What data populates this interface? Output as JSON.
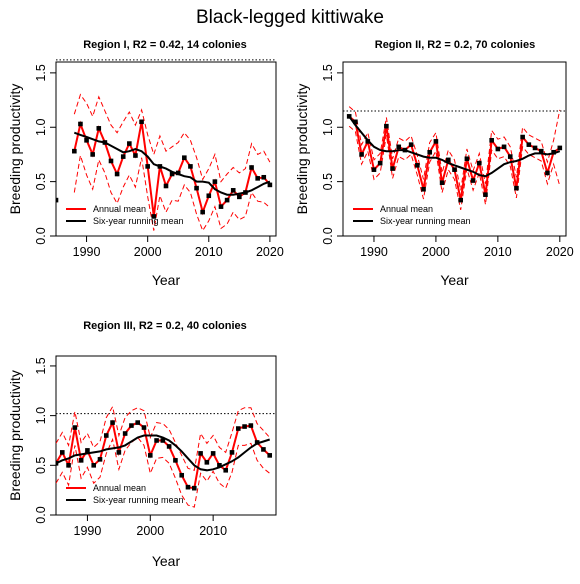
{
  "figure_title": "Black-legged kittiwake",
  "colors": {
    "annual": "#ff0000",
    "running": "#000000",
    "reference": "#000000",
    "points": "#000000"
  },
  "chart_data": [
    {
      "type": "line",
      "title": "Region I, R2 = 0.42, 14 colonies",
      "xlabel": "Year",
      "ylabel": "Breeding productivity",
      "xlim": [
        1985,
        2021
      ],
      "ylim": [
        0,
        1.6
      ],
      "xticks": [
        1990,
        2000,
        2010,
        2020
      ],
      "yticks": [
        0.0,
        0.5,
        1.0,
        1.5
      ],
      "reference_line": 1.62,
      "legend": {
        "position": "bottom-left",
        "entries": [
          "Annual mean",
          "Six-year running mean"
        ]
      },
      "x": [
        1985,
        1988,
        1989,
        1990,
        1991,
        1992,
        1993,
        1994,
        1995,
        1996,
        1997,
        1998,
        1999,
        2000,
        2001,
        2002,
        2003,
        2004,
        2005,
        2006,
        2007,
        2008,
        2009,
        2010,
        2011,
        2012,
        2013,
        2014,
        2015,
        2016,
        2017,
        2018,
        2019,
        2020
      ],
      "series": [
        {
          "name": "Annual mean",
          "values": [
            0.33,
            0.78,
            1.03,
            0.88,
            0.75,
            0.99,
            0.86,
            0.69,
            0.57,
            0.73,
            0.85,
            0.74,
            1.05,
            0.64,
            0.18,
            0.64,
            0.46,
            0.57,
            0.58,
            0.72,
            0.64,
            0.44,
            0.22,
            0.37,
            0.5,
            0.27,
            0.33,
            0.42,
            0.36,
            0.4,
            0.63,
            0.53,
            0.54,
            0.47
          ]
        },
        {
          "name": "Six-year running mean",
          "values": [
            null,
            0.95,
            0.93,
            0.91,
            0.89,
            0.87,
            0.86,
            0.83,
            0.8,
            0.77,
            0.78,
            0.8,
            0.78,
            0.73,
            0.66,
            0.64,
            0.62,
            0.59,
            0.57,
            0.55,
            0.54,
            0.5,
            0.5,
            0.49,
            0.43,
            0.4,
            0.38,
            0.38,
            0.39,
            0.4,
            0.42,
            0.45,
            0.48,
            0.5
          ]
        },
        {
          "name": "Upper bound",
          "values": [
            null,
            1.12,
            1.3,
            1.22,
            1.1,
            1.28,
            1.15,
            1.02,
            0.95,
            1.05,
            1.14,
            1.02,
            1.16,
            0.93,
            0.75,
            0.92,
            0.78,
            0.82,
            0.86,
            0.95,
            0.88,
            0.72,
            0.52,
            0.62,
            0.75,
            0.5,
            0.57,
            0.63,
            0.58,
            0.62,
            0.85,
            0.75,
            0.78,
            0.68
          ]
        },
        {
          "name": "Lower bound",
          "values": [
            null,
            0.4,
            0.74,
            0.56,
            0.43,
            0.7,
            0.58,
            0.4,
            0.3,
            0.45,
            0.56,
            0.45,
            0.72,
            0.36,
            0.05,
            0.37,
            0.22,
            0.33,
            0.32,
            0.47,
            0.4,
            0.2,
            0.05,
            0.14,
            0.27,
            0.07,
            0.11,
            0.22,
            0.15,
            0.18,
            0.4,
            0.32,
            0.31,
            0.26
          ]
        }
      ]
    },
    {
      "type": "line",
      "title": "Region II, R2 = 0.2, 70 colonies",
      "xlabel": "Year",
      "ylabel": "Breeding productivity",
      "xlim": [
        1985,
        2021
      ],
      "ylim": [
        0,
        1.6
      ],
      "xticks": [
        1990,
        2000,
        2010,
        2020
      ],
      "yticks": [
        0.0,
        0.5,
        1.0,
        1.5
      ],
      "reference_line": 1.15,
      "legend": {
        "position": "bottom-left",
        "entries": [
          "Annual mean",
          "Six-year running mean"
        ]
      },
      "x": [
        1986,
        1987,
        1988,
        1989,
        1990,
        1991,
        1992,
        1993,
        1994,
        1995,
        1996,
        1997,
        1998,
        1999,
        2000,
        2001,
        2002,
        2003,
        2004,
        2005,
        2006,
        2007,
        2008,
        2009,
        2010,
        2011,
        2012,
        2013,
        2014,
        2015,
        2016,
        2017,
        2018,
        2019,
        2020
      ],
      "series": [
        {
          "name": "Annual mean",
          "values": [
            1.1,
            1.05,
            0.75,
            0.87,
            0.61,
            0.67,
            1.01,
            0.62,
            0.82,
            0.79,
            0.84,
            0.65,
            0.43,
            0.77,
            0.87,
            0.49,
            0.7,
            0.61,
            0.33,
            0.71,
            0.51,
            0.67,
            0.38,
            0.88,
            0.8,
            0.82,
            0.73,
            0.44,
            0.91,
            0.84,
            0.81,
            0.78,
            0.58,
            0.77,
            0.81
          ]
        },
        {
          "name": "Six-year running mean",
          "values": [
            1.1,
            1.02,
            0.95,
            0.88,
            0.82,
            0.79,
            0.78,
            0.78,
            0.79,
            0.79,
            0.77,
            0.75,
            0.73,
            0.72,
            0.72,
            0.7,
            0.67,
            0.65,
            0.63,
            0.61,
            0.59,
            0.56,
            0.55,
            0.58,
            0.62,
            0.66,
            0.68,
            0.69,
            0.71,
            0.74,
            0.76,
            0.76,
            0.75,
            0.76,
            0.78
          ]
        },
        {
          "name": "Upper bound",
          "values": [
            1.19,
            1.14,
            0.84,
            0.95,
            0.7,
            0.76,
            1.09,
            0.71,
            0.9,
            0.87,
            0.92,
            0.74,
            0.52,
            0.86,
            0.95,
            0.58,
            0.79,
            0.7,
            0.42,
            0.8,
            0.6,
            0.76,
            0.48,
            0.97,
            0.89,
            0.91,
            0.82,
            0.54,
            1.0,
            0.93,
            0.9,
            0.87,
            0.68,
            0.88,
            1.16
          ]
        },
        {
          "name": "Lower bound",
          "values": [
            1.01,
            0.96,
            0.66,
            0.78,
            0.52,
            0.58,
            0.93,
            0.53,
            0.73,
            0.7,
            0.75,
            0.56,
            0.34,
            0.68,
            0.78,
            0.4,
            0.61,
            0.52,
            0.24,
            0.62,
            0.42,
            0.58,
            0.29,
            0.79,
            0.71,
            0.73,
            0.64,
            0.35,
            0.82,
            0.75,
            0.72,
            0.69,
            0.48,
            0.66,
            0.46
          ]
        }
      ]
    },
    {
      "type": "line",
      "title": "Region III, R2 = 0.2, 40 colonies",
      "xlabel": "Year",
      "ylabel": "Breeding productivity",
      "xlim": [
        1985,
        2020
      ],
      "ylim": [
        0,
        1.6
      ],
      "xticks": [
        1990,
        2000,
        2010
      ],
      "yticks": [
        0.0,
        0.5,
        1.0,
        1.5
      ],
      "reference_line": 1.02,
      "legend": {
        "position": "bottom-left",
        "entries": [
          "Annual mean",
          "Six-year running mean"
        ]
      },
      "x": [
        1985,
        1986,
        1987,
        1988,
        1989,
        1990,
        1991,
        1992,
        1993,
        1994,
        1995,
        1996,
        1997,
        1998,
        1999,
        2000,
        2001,
        2002,
        2003,
        2004,
        2005,
        2006,
        2007,
        2008,
        2009,
        2010,
        2011,
        2012,
        2013,
        2014,
        2015,
        2016,
        2017,
        2018,
        2019
      ],
      "series": [
        {
          "name": "Annual mean",
          "values": [
            0.52,
            0.63,
            0.5,
            0.88,
            0.55,
            0.65,
            0.5,
            0.56,
            0.8,
            0.93,
            0.63,
            0.82,
            0.9,
            0.93,
            0.88,
            0.6,
            0.75,
            0.75,
            0.69,
            0.55,
            0.4,
            0.28,
            0.27,
            0.62,
            0.53,
            0.62,
            0.5,
            0.45,
            0.63,
            0.87,
            0.89,
            0.9,
            0.73,
            0.66,
            0.6
          ]
        },
        {
          "name": "Six-year running mean",
          "values": [
            0.52,
            0.55,
            0.57,
            0.6,
            0.61,
            0.62,
            0.63,
            0.64,
            0.66,
            0.67,
            0.68,
            0.7,
            0.74,
            0.78,
            0.8,
            0.8,
            0.8,
            0.78,
            0.75,
            0.7,
            0.64,
            0.57,
            0.5,
            0.46,
            0.45,
            0.46,
            0.48,
            0.51,
            0.54,
            0.58,
            0.63,
            0.68,
            0.72,
            0.74,
            0.76
          ]
        },
        {
          "name": "Upper bound",
          "values": [
            0.72,
            0.83,
            0.7,
            1.04,
            0.73,
            0.82,
            0.68,
            0.74,
            0.98,
            1.09,
            0.8,
            0.98,
            1.05,
            1.08,
            1.05,
            0.78,
            0.93,
            0.92,
            0.86,
            0.73,
            0.6,
            0.47,
            0.45,
            0.82,
            0.72,
            0.8,
            0.68,
            0.63,
            0.83,
            1.05,
            1.08,
            1.08,
            0.92,
            0.85,
            0.78
          ]
        },
        {
          "name": "Lower bound",
          "values": [
            0.32,
            0.43,
            0.3,
            0.7,
            0.37,
            0.48,
            0.32,
            0.38,
            0.62,
            0.76,
            0.46,
            0.65,
            0.73,
            0.78,
            0.7,
            0.42,
            0.57,
            0.58,
            0.52,
            0.37,
            0.2,
            0.1,
            0.08,
            0.42,
            0.34,
            0.44,
            0.32,
            0.27,
            0.43,
            0.7,
            0.7,
            0.72,
            0.55,
            0.47,
            0.42
          ]
        }
      ]
    }
  ]
}
